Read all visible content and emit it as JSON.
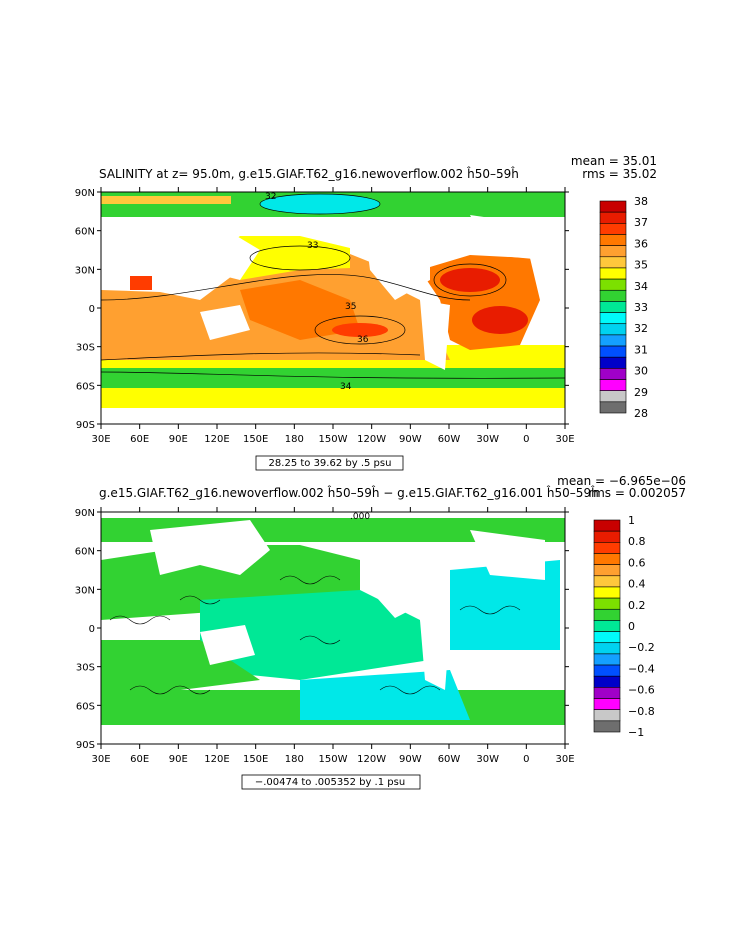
{
  "panel1": {
    "title": "SALINITY at z=  95.0m, g.e15.GIAF.T62_g16.newoverflow.002 ĥ50–59ĥ",
    "mean": "mean = 35.01",
    "rms": "rms = 35.02",
    "range_note": "28.25 to 39.62 by .5 psu",
    "y_ticks": [
      "90N",
      "60N",
      "30N",
      "0",
      "30S",
      "60S",
      "90S"
    ],
    "x_ticks": [
      "30E",
      "60E",
      "90E",
      "120E",
      "150E",
      "180",
      "150W",
      "120W",
      "90W",
      "60W",
      "30W",
      "0",
      "30E"
    ],
    "colorbar": {
      "labels": [
        "38",
        "37",
        "36",
        "35",
        "34",
        "33",
        "32",
        "31",
        "30",
        "29",
        "28"
      ],
      "colors": [
        "#c80000",
        "#e81c00",
        "#ff3c00",
        "#ff7800",
        "#ffa030",
        "#ffc83c",
        "#ffff00",
        "#7ce000",
        "#32d232",
        "#00e896",
        "#00fafa",
        "#00d2f0",
        "#14a0ff",
        "#0050ff",
        "#0000c8",
        "#a000c8",
        "#ff00ff",
        "#c8c8c8",
        "#6e6e6e"
      ]
    },
    "contour_labels": [
      "32",
      "33",
      "34",
      "35",
      "36"
    ]
  },
  "panel2": {
    "title": "g.e15.GIAF.T62_g16.newoverflow.002 ĥ50–59ĥ − g.e15.GIAF.T62_g16.001 ĥ50–59ĥ",
    "mean": "mean = −6.965e−06",
    "rms": "rms = 0.002057",
    "range_note": "−.00474 to .005352 by .1 psu",
    "y_ticks": [
      "90N",
      "60N",
      "30N",
      "0",
      "30S",
      "60S",
      "90S"
    ],
    "x_ticks": [
      "30E",
      "60E",
      "90E",
      "120E",
      "150E",
      "180",
      "150W",
      "120W",
      "90W",
      "60W",
      "30W",
      "0",
      "30E"
    ],
    "colorbar": {
      "labels": [
        "1",
        "0.8",
        "0.6",
        "0.4",
        "0.2",
        "0",
        "−0.2",
        "−0.4",
        "−0.6",
        "−0.8",
        "−1"
      ],
      "colors": [
        "#c80000",
        "#e81c00",
        "#ff3c00",
        "#ff7800",
        "#ffa030",
        "#ffc83c",
        "#ffff00",
        "#7ce000",
        "#32d232",
        "#00e896",
        "#00fafa",
        "#00d2f0",
        "#14a0ff",
        "#0050ff",
        "#0000c8",
        "#a000c8",
        "#ff00ff",
        "#c8c8c8",
        "#6e6e6e"
      ]
    },
    "contour_labels": [
      ".000"
    ]
  }
}
